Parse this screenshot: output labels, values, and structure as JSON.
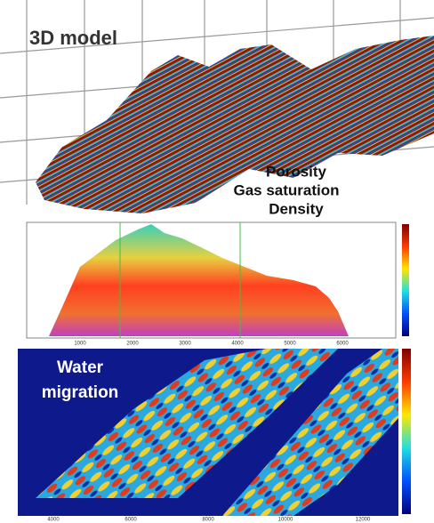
{
  "top_panel": {
    "title": "3D model",
    "properties": [
      "Porosity",
      "Gas saturation",
      "Density"
    ]
  },
  "middle_panel": {
    "x_ticks": [
      "1000",
      "2000",
      "3000",
      "4000",
      "5000",
      "6000"
    ]
  },
  "bottom_panel": {
    "label": [
      "Water",
      "migration"
    ],
    "x_ticks": [
      "4000",
      "6000",
      "8000",
      "10000",
      "12000"
    ]
  }
}
